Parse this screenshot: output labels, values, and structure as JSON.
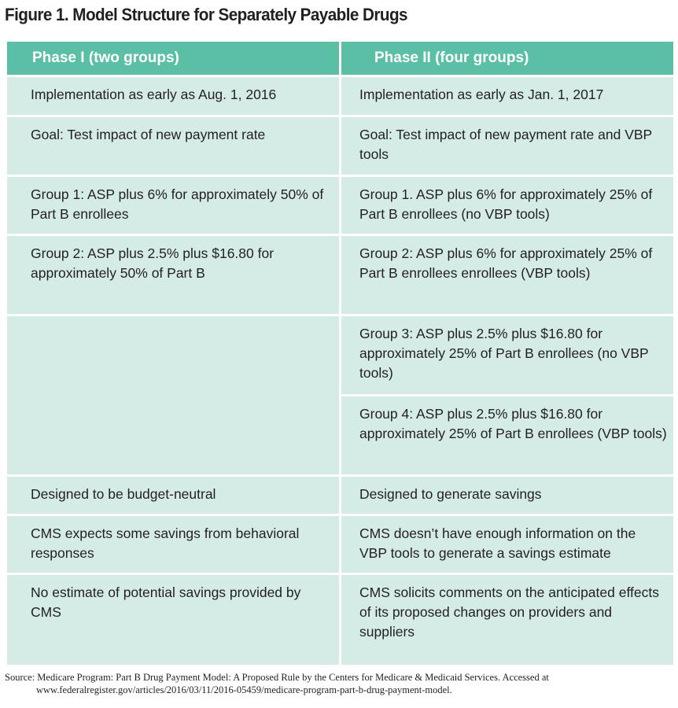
{
  "figure": {
    "title": "Figure 1. Model Structure for Separately Payable Drugs"
  },
  "table": {
    "headers": [
      "Phase I (two groups)",
      "Phase II (four groups)"
    ],
    "rows": [
      [
        "Implementation as early as Aug. 1, 2016",
        "Implementation as early as Jan. 1, 2017"
      ],
      [
        "Goal: Test impact of new payment rate",
        "Goal: Test impact of new payment rate and VBP tools"
      ],
      [
        "Group 1: ASP plus 6% for approximately 50% of Part B enrollees",
        "Group 1. ASP plus 6% for approximately 25% of Part B enrollees (no VBP tools)"
      ],
      [
        "Group 2: ASP plus 2.5% plus $16.80 for approximately 50% of Part B",
        "Group 2: ASP plus 6% for approximately 25% of Part B enrollees enrollees (VBP tools)"
      ],
      [
        "",
        "Group 3: ASP plus 2.5% plus $16.80 for approximately 25% of Part B enrollees (no VBP tools)"
      ],
      [
        "",
        "Group 4: ASP plus 2.5% plus $16.80 for approximately 25% of Part B enrollees (VBP tools)"
      ],
      [
        "Designed to be budget-neutral",
        "Designed to generate savings"
      ],
      [
        "CMS expects some savings from behavioral responses",
        "CMS doesn’t have enough information on the VBP tools to generate a savings estimate"
      ],
      [
        "No estimate of potential savings provided by CMS",
        "CMS solicits comments on the anticipated effects of its proposed changes on providers and suppliers"
      ]
    ]
  },
  "source": {
    "line1": "Source: Medicare Program: Part B Drug Payment Model: A Proposed Rule by the Centers for Medicare & Medicaid Services. Accessed at",
    "line2": "www.federalregister.gov/articles/2016/03/11/2016-05459/medicare-program-part-b-drug-payment-model."
  },
  "colors": {
    "header_bg": "#5bbfa6",
    "cell_bg": "#d5ece6",
    "text": "#231f20"
  }
}
